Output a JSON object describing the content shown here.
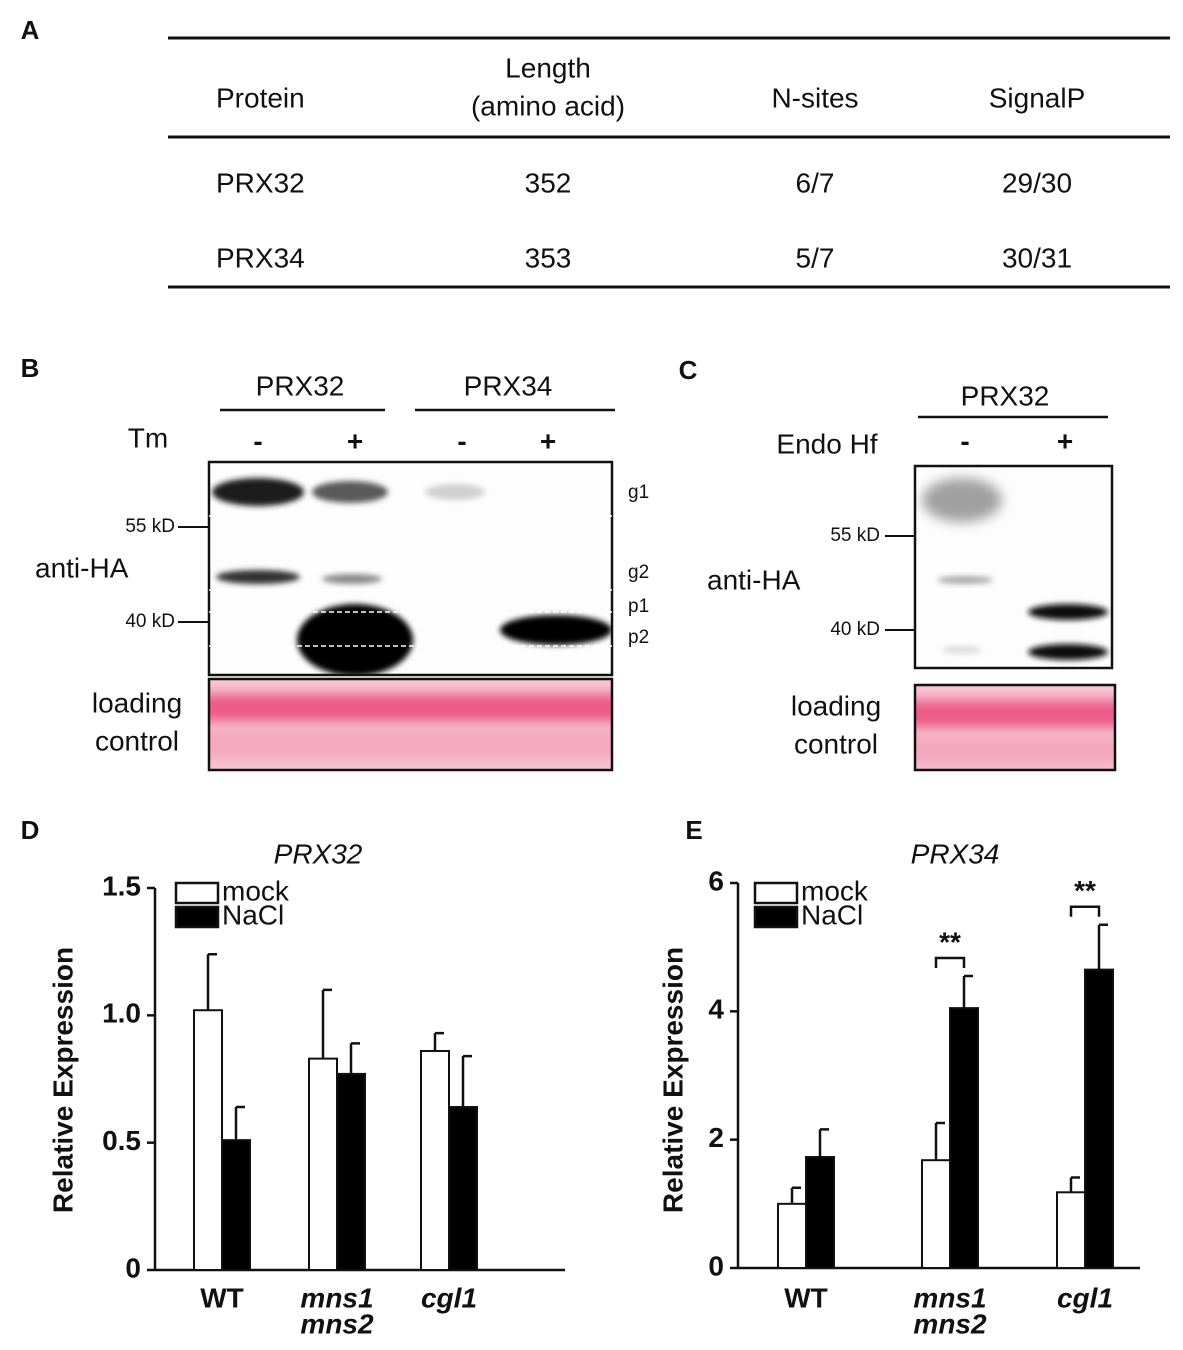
{
  "panels": {
    "a": {
      "label": "A",
      "table": {
        "header": [
          [
            "Protein"
          ],
          [
            "Length",
            "(amino acid)"
          ],
          [
            "N-sites"
          ],
          [
            "SignalP"
          ]
        ],
        "rows": [
          [
            "PRX32",
            "352",
            "6/7",
            "29/30"
          ],
          [
            "PRX34",
            "353",
            "5/7",
            "30/31"
          ]
        ]
      }
    },
    "b": {
      "label": "B",
      "groups": [
        "PRX32",
        "PRX34"
      ],
      "treatment": "Tm",
      "lanes": [
        "-",
        "+",
        "-",
        "+"
      ],
      "markers": [
        "55 kD",
        "40 kD"
      ],
      "antibody": "anti-HA",
      "bands": [
        "g1",
        "g2",
        "p1",
        "p2"
      ],
      "loading": [
        "loading",
        "control"
      ]
    },
    "c": {
      "label": "C",
      "groups": [
        "PRX32"
      ],
      "treatment": "Endo Hf",
      "lanes": [
        "-",
        "+"
      ],
      "markers": [
        "55 kD",
        "40 kD"
      ],
      "antibody": "anti-HA",
      "loading": [
        "loading",
        "control"
      ]
    }
  },
  "chart_data": [
    {
      "type": "bar",
      "panel_label": "D",
      "title": "PRX32",
      "y_label": "Relative Expression",
      "categories": [
        [
          "WT"
        ],
        [
          "mns1",
          "mns2"
        ],
        [
          "cgl1"
        ]
      ],
      "series": [
        {
          "name": "mock",
          "color": "#ffffff",
          "values": [
            1.02,
            0.83,
            0.86
          ],
          "errors": [
            0.22,
            0.27,
            0.07
          ]
        },
        {
          "name": "NaCl",
          "color": "#000000",
          "values": [
            0.51,
            0.77,
            0.64
          ],
          "errors": [
            0.13,
            0.12,
            0.2
          ]
        }
      ],
      "significance": [
        null,
        null,
        null
      ],
      "ylim": [
        0,
        1.5
      ],
      "yticks": [
        0,
        0.5,
        {
          "value": 1,
          "label": "1.0"
        },
        1.5
      ]
    },
    {
      "type": "bar",
      "panel_label": "E",
      "title": "PRX34",
      "y_label": "Relative Expression",
      "categories": [
        [
          "WT"
        ],
        [
          "mns1",
          "mns2"
        ],
        [
          "cgl1"
        ]
      ],
      "series": [
        {
          "name": "mock",
          "color": "#ffffff",
          "values": [
            1.0,
            1.68,
            1.18
          ],
          "errors": [
            0.25,
            0.58,
            0.23
          ]
        },
        {
          "name": "NaCl",
          "color": "#000000",
          "values": [
            1.73,
            4.05,
            4.65
          ],
          "errors": [
            0.43,
            0.5,
            0.7
          ]
        }
      ],
      "significance": [
        null,
        "**",
        "**"
      ],
      "ylim": [
        0,
        6
      ],
      "yticks": [
        0,
        2,
        4,
        6
      ]
    }
  ]
}
